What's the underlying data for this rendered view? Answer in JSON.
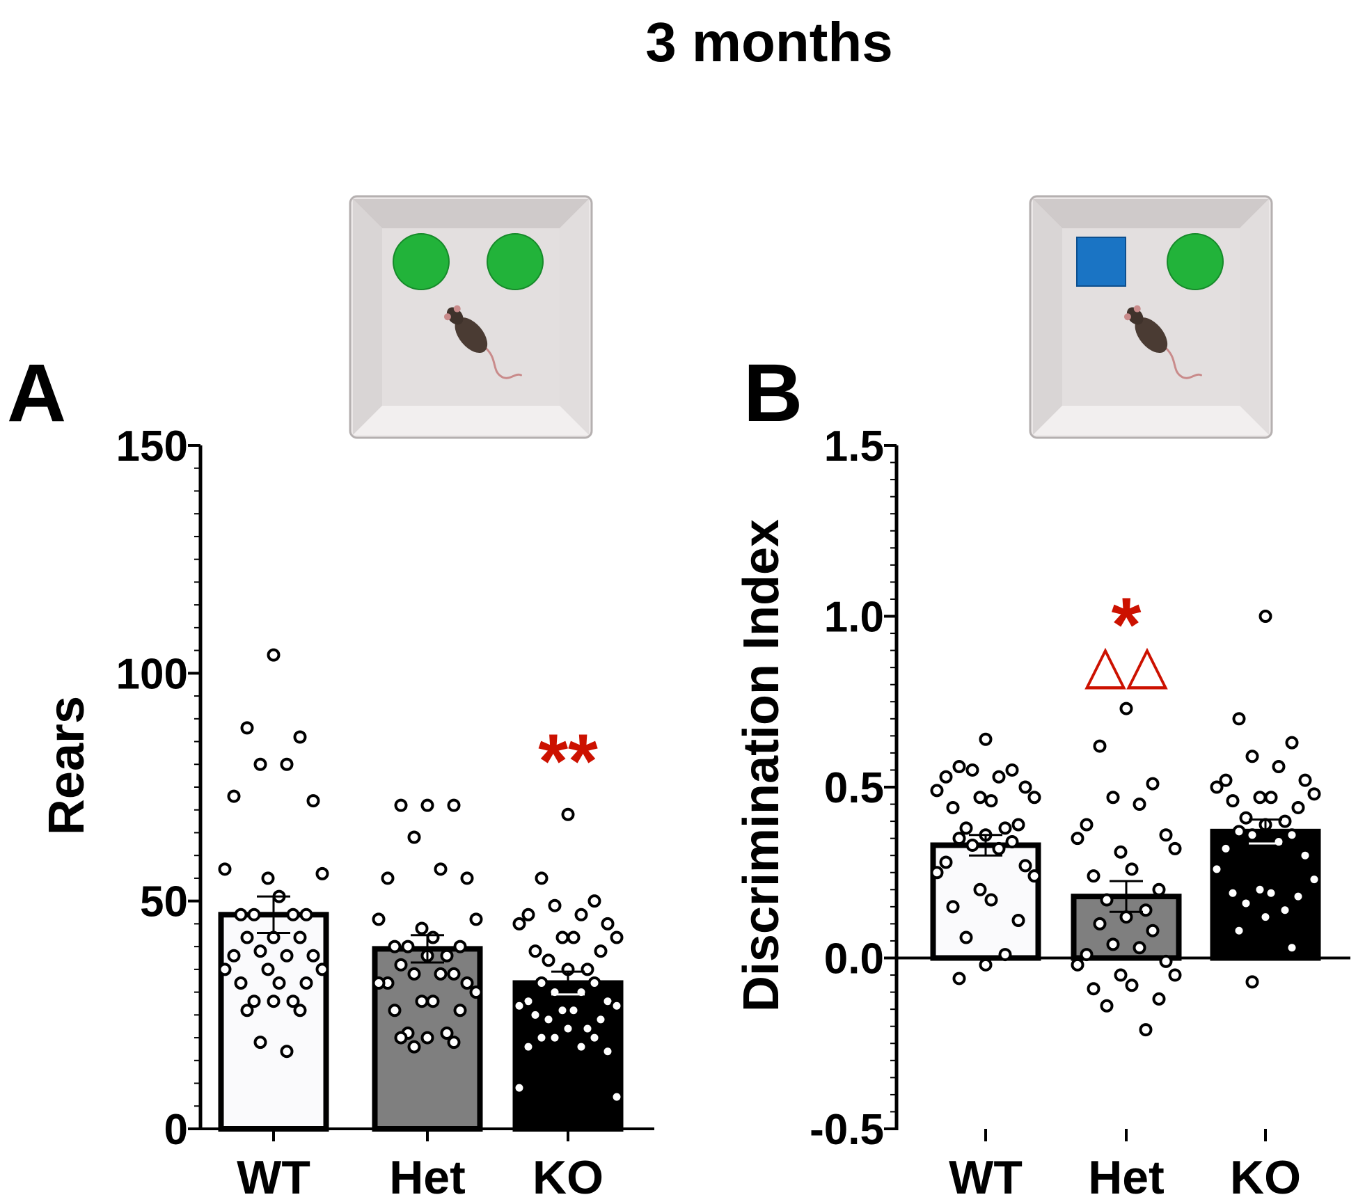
{
  "figure_title": "3 months",
  "colors": {
    "wt_fill": "#fafafc",
    "het_fill": "#7f7f7f",
    "ko_fill": "#000000",
    "significance": "#cc1100",
    "axis": "#000000",
    "object_green": "#22b33a",
    "object_blue": "#1a74c4",
    "arena_rim": "#e9e6e6",
    "arena_floor": "#e3dfdf"
  },
  "panels": [
    {
      "letter": "A",
      "arena_objects": [
        "green-circle",
        "green-circle"
      ],
      "chart_data": {
        "type": "bar",
        "title": "",
        "ylabel": "Rears",
        "xlabel": "",
        "ylim": [
          0,
          150
        ],
        "yticks": [
          0,
          50,
          100,
          150
        ],
        "ytick_labels": [
          "0",
          "50",
          "100",
          "150"
        ],
        "minor_tick_step": 5,
        "zero_line": false,
        "categories": [
          "WT",
          "Het",
          "KO"
        ],
        "means": [
          47,
          39.5,
          32
        ],
        "sem": [
          4,
          3,
          2.5
        ],
        "points": [
          [
            104,
            88,
            86,
            80,
            80,
            73,
            72,
            57,
            56,
            55,
            51,
            47,
            47,
            47,
            47,
            42,
            42,
            42,
            39,
            38,
            38,
            38,
            35,
            35,
            35,
            32,
            32,
            32,
            28,
            28,
            28,
            26,
            26,
            19,
            17
          ],
          [
            71,
            71,
            71,
            64,
            57,
            55,
            55,
            46,
            46,
            44,
            42,
            40,
            40,
            40,
            38,
            38,
            36,
            34,
            34,
            34,
            32,
            32,
            32,
            30,
            28,
            28,
            26,
            26,
            21,
            21,
            20,
            20,
            19,
            18
          ],
          [
            69,
            55,
            50,
            49,
            47,
            47,
            45,
            45,
            42,
            42,
            42,
            39,
            39,
            37,
            35,
            35,
            32,
            32,
            30,
            30,
            28,
            28,
            27,
            27,
            26,
            26,
            25,
            24,
            24,
            22,
            22,
            20,
            20,
            20,
            18,
            18,
            17,
            9,
            7
          ]
        ],
        "significance": [
          {
            "category": "KO",
            "label": "**",
            "y": 81
          }
        ]
      }
    },
    {
      "letter": "B",
      "arena_objects": [
        "blue-square",
        "green-circle"
      ],
      "chart_data": {
        "type": "bar",
        "title": "",
        "ylabel": "Discrimination Index",
        "xlabel": "",
        "ylim": [
          -0.5,
          1.5
        ],
        "yticks": [
          -0.5,
          0.0,
          0.5,
          1.0,
          1.5
        ],
        "ytick_labels": [
          "-0.5",
          "0.0",
          "0.5",
          "1.0",
          "1.5"
        ],
        "minor_tick_step": 0.05,
        "zero_line": true,
        "categories": [
          "WT",
          "Het",
          "KO"
        ],
        "means": [
          0.33,
          0.18,
          0.37
        ],
        "sem": [
          0.03,
          0.045,
          0.035
        ],
        "points": [
          [
            0.64,
            0.56,
            0.55,
            0.55,
            0.53,
            0.53,
            0.5,
            0.49,
            0.47,
            0.47,
            0.46,
            0.44,
            0.39,
            0.38,
            0.38,
            0.36,
            0.35,
            0.34,
            0.33,
            0.32,
            0.28,
            0.27,
            0.25,
            0.24,
            0.2,
            0.17,
            0.15,
            0.11,
            0.06,
            0.01,
            -0.02,
            -0.06
          ],
          [
            0.73,
            0.62,
            0.51,
            0.47,
            0.45,
            0.39,
            0.36,
            0.35,
            0.32,
            0.31,
            0.26,
            0.24,
            0.2,
            0.17,
            0.14,
            0.12,
            0.1,
            0.08,
            0.04,
            0.03,
            0.01,
            -0.01,
            -0.02,
            -0.05,
            -0.05,
            -0.08,
            -0.09,
            -0.12,
            -0.14,
            -0.21
          ],
          [
            1.0,
            0.7,
            0.63,
            0.59,
            0.56,
            0.52,
            0.52,
            0.5,
            0.48,
            0.47,
            0.47,
            0.46,
            0.44,
            0.41,
            0.4,
            0.39,
            0.37,
            0.36,
            0.36,
            0.34,
            0.32,
            0.3,
            0.26,
            0.23,
            0.2,
            0.19,
            0.19,
            0.18,
            0.16,
            0.14,
            0.12,
            0.08,
            0.03,
            -0.07
          ]
        ],
        "significance": [
          {
            "category": "Het",
            "label": "*",
            "y": 0.98
          },
          {
            "category": "Het",
            "label": "△△",
            "y": 0.85
          }
        ]
      }
    }
  ]
}
